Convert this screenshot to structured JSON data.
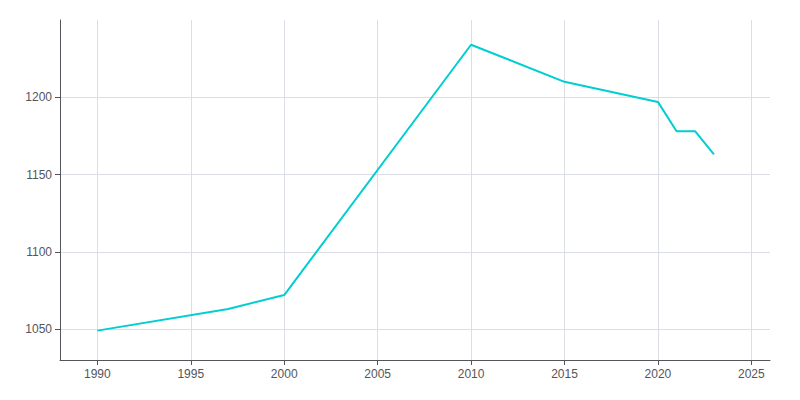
{
  "chart_data": {
    "type": "line",
    "x": [
      1990,
      1997,
      2000,
      2010,
      2015,
      2020,
      2021,
      2022,
      2023
    ],
    "values": [
      1049,
      1063,
      1072,
      1234,
      1210,
      1197,
      1178,
      1178,
      1163
    ],
    "color": "#00CED1",
    "xlim": [
      1988,
      2026
    ],
    "ylim": [
      1030,
      1250
    ],
    "xticks": [
      1990,
      1995,
      2000,
      2005,
      2010,
      2015,
      2020,
      2025
    ],
    "yticks": [
      1050,
      1100,
      1150,
      1200
    ],
    "grid": true
  }
}
